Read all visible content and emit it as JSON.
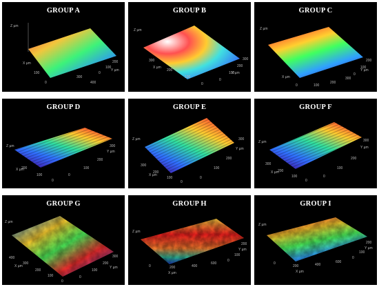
{
  "panels": [
    {
      "id": "a",
      "title": "GROUP A",
      "z_label": "Z µm",
      "x_label": "X µm",
      "y_label": "Y µm",
      "ticks_x": [
        "0",
        "100",
        "300",
        "400"
      ],
      "ticks_y": [
        "0",
        "100",
        "200"
      ],
      "colors": [
        "#ff4040",
        "#ffd040",
        "#40ff80",
        "#30a0ff",
        "#5030c0"
      ],
      "roughness": "smooth"
    },
    {
      "id": "b",
      "title": "GROUP B",
      "z_label": "Z µm",
      "x_label": "X µm",
      "y_label": "Y µm",
      "ticks_x": [
        "0",
        "100",
        "200",
        "300"
      ],
      "ticks_y": [
        "0",
        "100",
        "200",
        "300"
      ],
      "colors": [
        "#ffffff",
        "#ff5050",
        "#ffcc30",
        "#40e0e0",
        "#3050ff"
      ],
      "roughness": "smooth"
    },
    {
      "id": "c",
      "title": "GROUP C",
      "z_label": "Z µm",
      "x_label": "X µm",
      "y_label": "Y µm",
      "ticks_x": [
        "0",
        "100",
        "200",
        "300"
      ],
      "ticks_y": [
        "0",
        "100",
        "200"
      ],
      "colors": [
        "#ff3030",
        "#ffd030",
        "#40ff60",
        "#30a0ff",
        "#3020a0"
      ],
      "roughness": "smooth"
    },
    {
      "id": "d",
      "title": "GROUP D",
      "z_label": "Z µm",
      "x_label": "X µm",
      "y_label": "Y µm",
      "ticks_x": [
        "0",
        "100",
        "200"
      ],
      "ticks_y": [
        "0",
        "100",
        "200",
        "300"
      ],
      "colors": [
        "#ff3030",
        "#ffcc30",
        "#30e0a0",
        "#3070ff",
        "#4020b0"
      ],
      "roughness": "ridged"
    },
    {
      "id": "e",
      "title": "GROUP E",
      "z_label": "Z µm",
      "x_label": "X µm",
      "y_label": "Y µm",
      "ticks_x": [
        "0",
        "100",
        "200",
        "300"
      ],
      "ticks_y": [
        "0",
        "100",
        "200",
        "300"
      ],
      "colors": [
        "#ff3030",
        "#ffcc30",
        "#30e0a0",
        "#3070ff",
        "#4020b0"
      ],
      "roughness": "ridged"
    },
    {
      "id": "f",
      "title": "GROUP F",
      "z_label": "Z µm",
      "x_label": "X µm",
      "y_label": "Y µm",
      "ticks_x": [
        "0",
        "100",
        "200",
        "300"
      ],
      "ticks_y": [
        "0",
        "100",
        "200",
        "300"
      ],
      "colors": [
        "#ff3030",
        "#ffcc30",
        "#30e0a0",
        "#3070ff",
        "#4020b0"
      ],
      "roughness": "ridged"
    },
    {
      "id": "g",
      "title": "GROUP G",
      "z_label": "Z µm",
      "x_label": "X µm",
      "y_label": "Y µm",
      "ticks_x": [
        "0",
        "100",
        "200",
        "300",
        "400"
      ],
      "ticks_y": [
        "0",
        "100",
        "200",
        "300"
      ],
      "colors": [
        "#ff3030",
        "#ffd030",
        "#50ff60",
        "#30a0ff",
        "#2040d0"
      ],
      "roughness": "rough"
    },
    {
      "id": "h",
      "title": "GROUP H",
      "z_label": "Z µm",
      "x_label": "X µm",
      "y_label": "Y µm",
      "ticks_x": [
        "0",
        "200",
        "400",
        "600"
      ],
      "ticks_y": [
        "0",
        "100",
        "200"
      ],
      "colors": [
        "#ff2020",
        "#ff8030",
        "#ffd040",
        "#30c0a0",
        "#2040d0"
      ],
      "roughness": "rough"
    },
    {
      "id": "i",
      "title": "GROUP I",
      "z_label": "Z µm",
      "x_label": "X µm",
      "y_label": "Y µm",
      "ticks_x": [
        "0",
        "200",
        "400",
        "600"
      ],
      "ticks_y": [
        "0",
        "100",
        "200"
      ],
      "colors": [
        "#ff3030",
        "#ffd030",
        "#50ff60",
        "#30a0ff",
        "#2040d0"
      ],
      "roughness": "rough"
    }
  ]
}
